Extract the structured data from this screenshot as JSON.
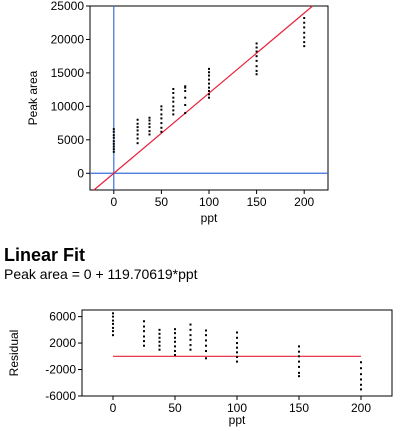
{
  "chart_data": [
    {
      "type": "scatter",
      "xlabel": "ppt",
      "ylabel": "Peak area",
      "xlim": [
        -25,
        225
      ],
      "ylim": [
        -2500,
        25000
      ],
      "xticks": [
        0,
        50,
        100,
        150,
        200
      ],
      "yticks": [
        0,
        5000,
        10000,
        15000,
        20000,
        25000
      ],
      "reference_lines": {
        "x": 0,
        "y": 0,
        "color": "#3a6fd8"
      },
      "fit_line": {
        "intercept": 0,
        "slope": 119.70619,
        "color": "#e8203a"
      },
      "points": [
        [
          0,
          3200
        ],
        [
          0,
          3600
        ],
        [
          0,
          4000
        ],
        [
          0,
          4400
        ],
        [
          0,
          4800
        ],
        [
          0,
          5300
        ],
        [
          0,
          5700
        ],
        [
          0,
          6200
        ],
        [
          0,
          6600
        ],
        [
          25,
          4500
        ],
        [
          25,
          5200
        ],
        [
          25,
          5800
        ],
        [
          25,
          6400
        ],
        [
          25,
          6900
        ],
        [
          25,
          7400
        ],
        [
          25,
          8000
        ],
        [
          37.5,
          5800
        ],
        [
          37.5,
          6300
        ],
        [
          37.5,
          6900
        ],
        [
          37.5,
          7400
        ],
        [
          37.5,
          7900
        ],
        [
          37.5,
          8300
        ],
        [
          50,
          6200
        ],
        [
          50,
          6800
        ],
        [
          50,
          7500
        ],
        [
          50,
          8200
        ],
        [
          50,
          8800
        ],
        [
          50,
          9500
        ],
        [
          50,
          10000
        ],
        [
          62.5,
          8800
        ],
        [
          62.5,
          9400
        ],
        [
          62.5,
          10000
        ],
        [
          62.5,
          10700
        ],
        [
          62.5,
          11300
        ],
        [
          62.5,
          12000
        ],
        [
          62.5,
          12600
        ],
        [
          75,
          9000
        ],
        [
          75,
          10200
        ],
        [
          75,
          11300
        ],
        [
          75,
          12300
        ],
        [
          75,
          12800
        ],
        [
          75,
          13000
        ],
        [
          100,
          11300
        ],
        [
          100,
          11800
        ],
        [
          100,
          12300
        ],
        [
          100,
          12800
        ],
        [
          100,
          13400
        ],
        [
          100,
          14000
        ],
        [
          100,
          14600
        ],
        [
          100,
          15100
        ],
        [
          100,
          15600
        ],
        [
          150,
          14800
        ],
        [
          150,
          15300
        ],
        [
          150,
          16000
        ],
        [
          150,
          16800
        ],
        [
          150,
          17500
        ],
        [
          150,
          18200
        ],
        [
          150,
          18800
        ],
        [
          150,
          19400
        ],
        [
          200,
          19000
        ],
        [
          200,
          19600
        ],
        [
          200,
          20300
        ],
        [
          200,
          21000
        ],
        [
          200,
          21800
        ],
        [
          200,
          22500
        ],
        [
          200,
          23200
        ]
      ]
    },
    {
      "type": "scatter",
      "xlabel": "ppt",
      "ylabel": "Residual",
      "xlim": [
        -25,
        225
      ],
      "ylim": [
        -6000,
        7000
      ],
      "xticks": [
        0,
        50,
        100,
        150,
        200
      ],
      "yticks": [
        -6000,
        -2000,
        2000,
        6000
      ],
      "ytick_labels": [
        "-6000",
        "-2000",
        "2000",
        "6000"
      ],
      "zero_line": {
        "y": 0,
        "color": "#e8203a"
      },
      "points": [
        [
          0,
          3200
        ],
        [
          0,
          3800
        ],
        [
          0,
          4300
        ],
        [
          0,
          4900
        ],
        [
          0,
          5400
        ],
        [
          0,
          6000
        ],
        [
          0,
          6500
        ],
        [
          25,
          1600
        ],
        [
          25,
          2300
        ],
        [
          25,
          3000
        ],
        [
          25,
          3800
        ],
        [
          25,
          4500
        ],
        [
          25,
          5300
        ],
        [
          37.5,
          1000
        ],
        [
          37.5,
          1600
        ],
        [
          37.5,
          2200
        ],
        [
          37.5,
          2800
        ],
        [
          37.5,
          3400
        ],
        [
          37.5,
          4000
        ],
        [
          50,
          200
        ],
        [
          50,
          800
        ],
        [
          50,
          1500
        ],
        [
          50,
          2200
        ],
        [
          50,
          2800
        ],
        [
          50,
          3500
        ],
        [
          50,
          4100
        ],
        [
          62.5,
          1000
        ],
        [
          62.5,
          1700
        ],
        [
          62.5,
          2500
        ],
        [
          62.5,
          3200
        ],
        [
          62.5,
          4000
        ],
        [
          62.5,
          4800
        ],
        [
          75,
          -300
        ],
        [
          75,
          800
        ],
        [
          75,
          1600
        ],
        [
          75,
          2400
        ],
        [
          75,
          3200
        ],
        [
          75,
          3900
        ],
        [
          100,
          -800
        ],
        [
          100,
          -100
        ],
        [
          100,
          600
        ],
        [
          100,
          1300
        ],
        [
          100,
          2000
        ],
        [
          100,
          2800
        ],
        [
          100,
          3600
        ],
        [
          150,
          -3000
        ],
        [
          150,
          -2500
        ],
        [
          150,
          -1600
        ],
        [
          150,
          -800
        ],
        [
          150,
          0
        ],
        [
          150,
          700
        ],
        [
          150,
          1500
        ],
        [
          200,
          -5000
        ],
        [
          200,
          -4300
        ],
        [
          200,
          -3500
        ],
        [
          200,
          -2700
        ],
        [
          200,
          -1800
        ],
        [
          200,
          -900
        ]
      ]
    }
  ],
  "fit": {
    "heading": "Linear Fit",
    "equation": "Peak area = 0 + 119.70619*ppt"
  }
}
